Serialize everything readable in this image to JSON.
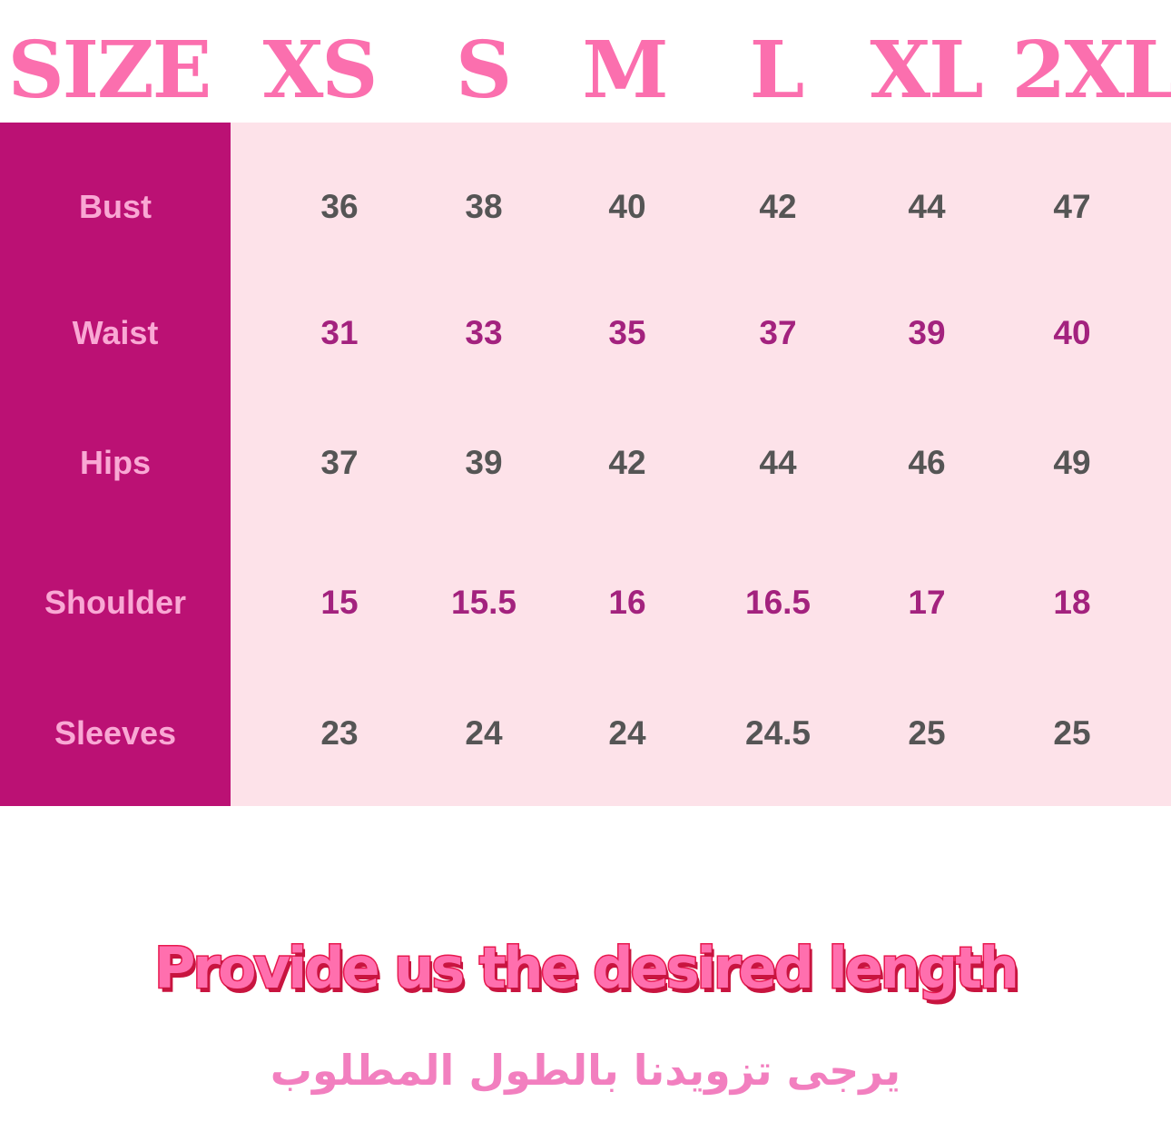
{
  "header": {
    "size_label": "SIZE",
    "sizes": [
      "XS",
      "S",
      "M",
      "L",
      "XL",
      "2XL"
    ]
  },
  "rows": [
    {
      "label": "Bust",
      "values": [
        "36",
        "38",
        "40",
        "42",
        "44",
        "47"
      ]
    },
    {
      "label": "Waist",
      "values": [
        "31",
        "33",
        "35",
        "37",
        "39",
        "40"
      ]
    },
    {
      "label": "Hips",
      "values": [
        "37",
        "39",
        "42",
        "44",
        "46",
        "49"
      ]
    },
    {
      "label": "Shoulder",
      "values": [
        "15",
        "15.5",
        "16",
        "16.5",
        "17",
        "18"
      ]
    },
    {
      "label": "Sleeves",
      "values": [
        "23",
        "24",
        "24",
        "24.5",
        "25",
        "25"
      ]
    }
  ],
  "footer": {
    "english": "Provide us the desired length",
    "arabic": "يرجى تزويدنا بالطول المطلوب"
  },
  "colors": {
    "header": "#fb6fae",
    "label_column": "#bb1174",
    "table_bg": "#fde2e9",
    "value_gray": "#555555",
    "value_magenta": "#a3227e"
  }
}
